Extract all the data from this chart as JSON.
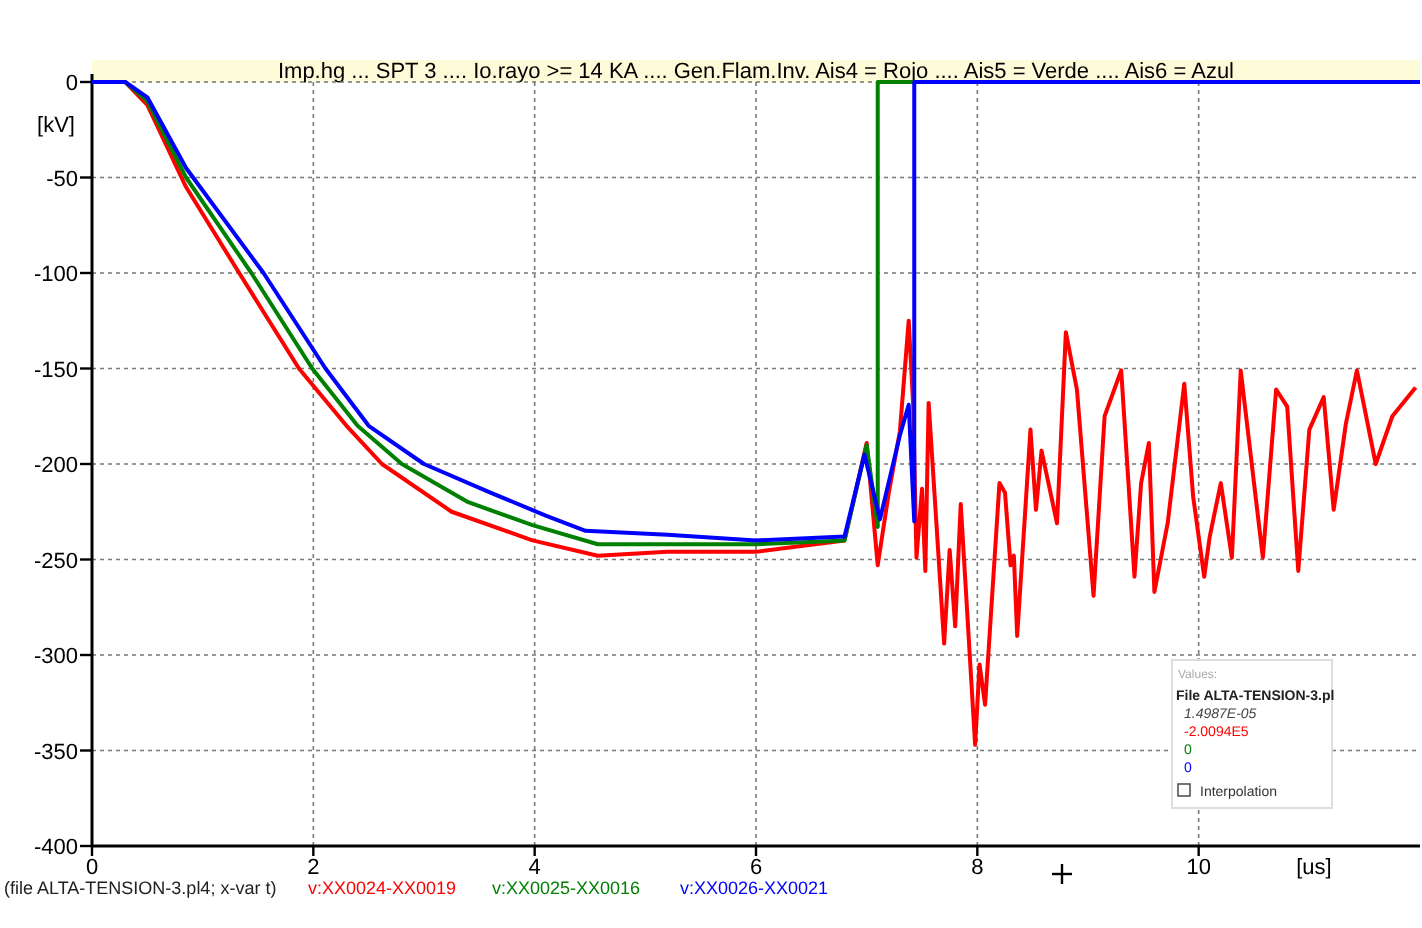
{
  "chart_data": {
    "type": "line",
    "title": "Imp.hg ... SPT 3 .... Io.rayo >= 14 KA .... Gen.Flam.Inv.   Ais4 = Rojo .... Ais5 =  Verde .... Ais6 = Azul",
    "xlabel": "[us]",
    "ylabel": "[kV]",
    "xlim": [
      0,
      12
    ],
    "xticks": [
      0,
      2,
      4,
      6,
      8,
      10
    ],
    "ylim": [
      -400,
      0
    ],
    "yticks": [
      -400,
      -350,
      -300,
      -250,
      -200,
      -150,
      -100,
      -50,
      0
    ],
    "grid": true,
    "legend": "bottom",
    "line_style": "solid",
    "marker": "none",
    "annotations": [
      "(file ALTA-TENSION-3.pl4; x-var t)",
      "Values:",
      "File ALTA-TENSION-3.pl",
      "1.4987E-05",
      "-2.0094E5",
      "0",
      "0",
      "Interpolation"
    ],
    "series": [
      {
        "name": "v:XX0024-XX0019",
        "color": "#ff0000",
        "x": [
          0,
          0.3,
          0.5,
          0.85,
          1.33,
          1.87,
          2.3,
          2.62,
          3.25,
          3.98,
          4.57,
          5.2,
          6,
          6.8,
          7.0,
          7.1,
          7.2,
          7.3,
          7.38,
          7.42,
          7.45,
          7.5,
          7.53,
          7.56,
          7.7,
          7.75,
          7.8,
          7.85,
          7.98,
          8.02,
          8.07,
          8.2,
          8.25,
          8.3,
          8.33,
          8.36,
          8.48,
          8.53,
          8.58,
          8.72,
          8.8,
          8.9,
          9.05,
          9.15,
          9.3,
          9.42,
          9.48,
          9.55,
          9.6,
          9.72,
          9.87,
          9.95,
          10.05,
          10.1,
          10.2,
          10.3,
          10.38,
          10.5,
          10.58,
          10.7,
          10.8,
          10.9,
          11.0,
          11.13,
          11.22,
          11.33,
          11.43,
          11.6,
          11.75,
          11.96
        ],
        "values": [
          0,
          0,
          -12,
          -55,
          -100,
          -150,
          -180,
          -200,
          -225,
          -240,
          -248,
          -246,
          -246,
          -240,
          -189,
          -253,
          -215,
          -183,
          -125,
          -169,
          -249,
          -213,
          -256,
          -168,
          -294,
          -245,
          -285,
          -221,
          -347,
          -305,
          -326,
          -210,
          -215,
          -253,
          -248,
          -290,
          -182,
          -224,
          -193,
          -231,
          -131,
          -161,
          -269,
          -175,
          -151,
          -259,
          -210,
          -189,
          -267,
          -231,
          -158,
          -217,
          -259,
          -238,
          -210,
          -249,
          -151,
          -210,
          -249,
          -161,
          -170,
          -256,
          -182,
          -165,
          -224,
          -179,
          -151,
          -200,
          -175,
          -160
        ]
      },
      {
        "name": "v:XX0025-XX0016",
        "color": "#008000",
        "x": [
          0,
          0.3,
          0.5,
          0.85,
          1.44,
          1.99,
          2.4,
          2.8,
          3.4,
          3.98,
          4.57,
          5.2,
          6,
          6.8,
          7.0,
          7.1,
          7.1,
          12
        ],
        "values": [
          0,
          0,
          -10,
          -50,
          -100,
          -150,
          -180,
          -200,
          -220,
          -232,
          -242,
          -242,
          -242,
          -240,
          -190,
          -233,
          0,
          0
        ]
      },
      {
        "name": "v:XX0026-XX0021",
        "color": "#0000ff",
        "x": [
          0,
          0.3,
          0.5,
          0.85,
          1.55,
          2.11,
          2.5,
          3.0,
          3.6,
          4.1,
          4.46,
          5.2,
          6,
          6.8,
          6.98,
          7.12,
          7.3,
          7.38,
          7.43,
          7.43,
          12
        ],
        "values": [
          0,
          0,
          -8,
          -45,
          -100,
          -150,
          -180,
          -200,
          -215,
          -227,
          -235,
          -237,
          -240,
          -238,
          -195,
          -229,
          -185,
          -169,
          -230,
          0,
          0
        ]
      }
    ]
  }
}
